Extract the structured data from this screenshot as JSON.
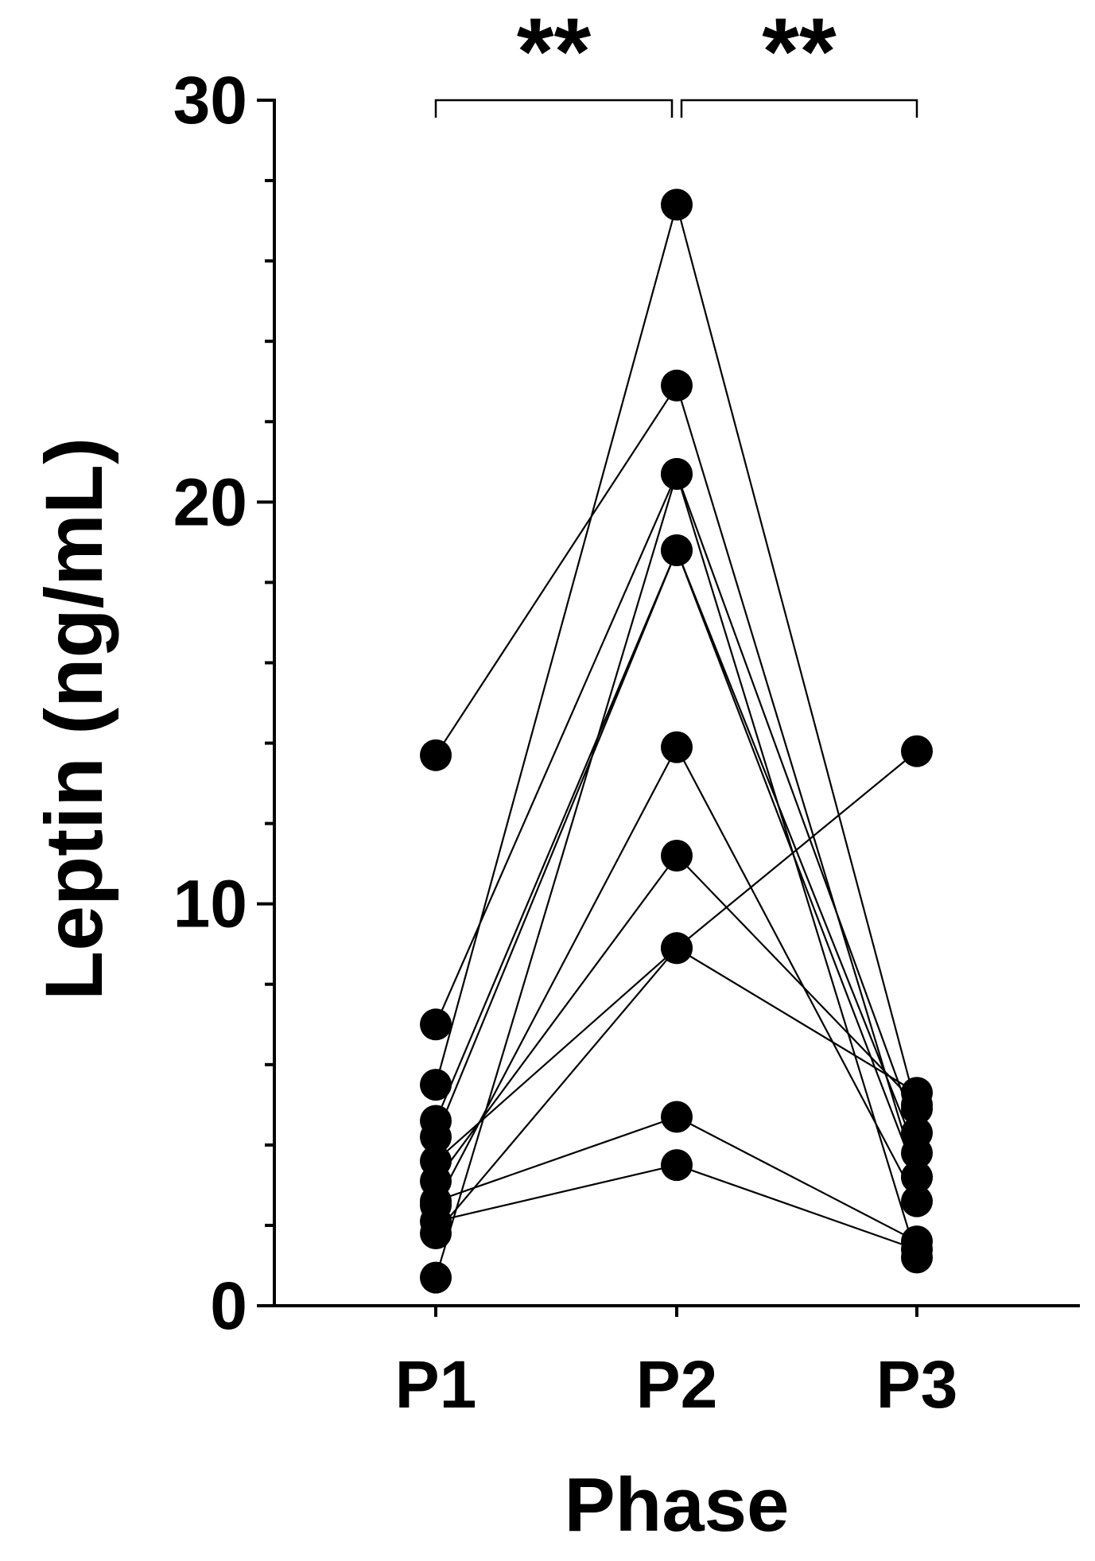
{
  "chart_data": {
    "type": "scatter",
    "subtype": "paired-lines",
    "title": "",
    "xlabel": "Phase",
    "ylabel": "Leptin (ng/mL)",
    "categories": [
      "P1",
      "P2",
      "P3"
    ],
    "ylim": [
      0,
      30
    ],
    "yticks": [
      0,
      10,
      20,
      30
    ],
    "yticks_minor_step": 2,
    "grid": false,
    "legend": "none",
    "colors": {
      "marker": "#000000",
      "line": "#000000"
    },
    "series": [
      {
        "values": [
          13.7,
          22.9,
          3.2
        ]
      },
      {
        "values": [
          0.7,
          20.7,
          4.3
        ]
      },
      {
        "values": [
          4.6,
          18.8,
          3.8
        ]
      },
      {
        "values": [
          4.2,
          18.8,
          3.2
        ]
      },
      {
        "values": [
          2.5,
          13.9,
          2.6
        ]
      },
      {
        "values": [
          3.1,
          11.2,
          5.0
        ]
      },
      {
        "values": [
          1.8,
          8.9,
          5.3
        ]
      },
      {
        "values": [
          5.5,
          27.4,
          4.9
        ]
      },
      {
        "values": [
          7.0,
          20.7,
          1.2
        ]
      },
      {
        "values": [
          2.1,
          3.5,
          1.4
        ]
      },
      {
        "values": [
          2.6,
          4.7,
          1.6
        ]
      },
      {
        "values": [
          3.6,
          8.9,
          13.8
        ]
      }
    ],
    "annotations": [
      {
        "type": "significance-bracket",
        "from": "P1",
        "to": "P2",
        "label": "**"
      },
      {
        "type": "significance-bracket",
        "from": "P2",
        "to": "P3",
        "label": "**"
      }
    ]
  }
}
